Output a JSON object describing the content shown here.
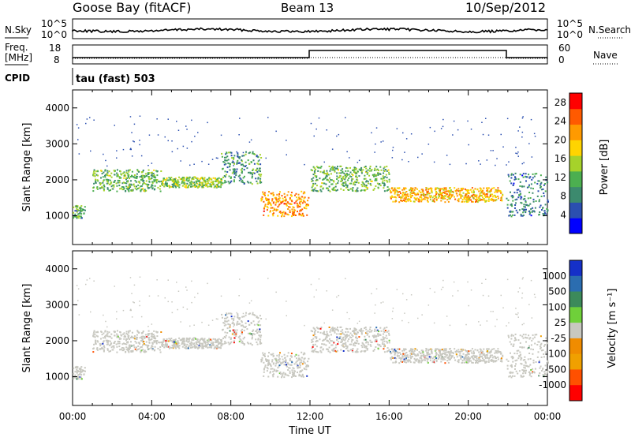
{
  "header": {
    "station": "Goose Bay (fitACF)",
    "beam": "Beam 13",
    "date": "10/Sep/2012"
  },
  "noise_panel": {
    "left_label": "N.Sky",
    "right_label": "N.Search",
    "axis_ticks": [
      "10^5",
      "10^0"
    ]
  },
  "freq_panel": {
    "label_line1": "Freq.",
    "label_line2": "[MHz]",
    "left_ticks": [
      "18",
      "8"
    ],
    "right_label": "Nave",
    "right_ticks": [
      "60",
      "0"
    ]
  },
  "cpid": {
    "label": "CPID",
    "mode": "tau (fast) 503"
  },
  "colors": {
    "power_scale": [
      "#0000ff",
      "#2b4fb0",
      "#3c8a6e",
      "#4caf50",
      "#a6d22a",
      "#ffd400",
      "#ff9a00",
      "#ff5a00",
      "#ff0000"
    ],
    "velocity_scale": [
      "#1530c8",
      "#2b6db0",
      "#3c8a5a",
      "#6fd03a",
      "#c8c8c0",
      "#f08c00",
      "#f0a000",
      "#ff5000",
      "#ff0000"
    ],
    "ground_scatter": "#c8c8c0"
  },
  "chart_data": [
    {
      "type": "heatmap",
      "name": "power",
      "ylabel": "Slant Range [km]",
      "yticks": [
        "1000",
        "2000",
        "3000",
        "4000"
      ],
      "ylim": [
        200,
        4500
      ],
      "xlim_hours": [
        0,
        24
      ],
      "colorbar": {
        "label": "Power [dB]",
        "ticks": [
          "4",
          "8",
          "12",
          "16",
          "20",
          "24",
          "28"
        ],
        "range": [
          0,
          30
        ]
      },
      "scatter_regions": [
        {
          "start_hr": 0.0,
          "end_hr": 0.6,
          "low_km": 950,
          "high_km": 1300,
          "level_db": 10
        },
        {
          "start_hr": 1.0,
          "end_hr": 4.5,
          "low_km": 1700,
          "high_km": 2300,
          "level_db": 12
        },
        {
          "start_hr": 4.5,
          "end_hr": 7.5,
          "low_km": 1800,
          "high_km": 2100,
          "level_db": 14
        },
        {
          "start_hr": 7.5,
          "end_hr": 9.5,
          "low_km": 1900,
          "high_km": 2800,
          "level_db": 10
        },
        {
          "start_hr": 9.5,
          "end_hr": 11.9,
          "low_km": 1000,
          "high_km": 1700,
          "level_db": 22
        },
        {
          "start_hr": 12.0,
          "end_hr": 16.0,
          "low_km": 1700,
          "high_km": 2400,
          "level_db": 12
        },
        {
          "start_hr": 16.0,
          "end_hr": 21.7,
          "low_km": 1400,
          "high_km": 1800,
          "level_db": 20
        },
        {
          "start_hr": 21.9,
          "end_hr": 24.0,
          "low_km": 1000,
          "high_km": 2200,
          "level_db": 8
        }
      ]
    },
    {
      "type": "heatmap",
      "name": "velocity",
      "ylabel": "Slant Range [km]",
      "xlabel": "Time UT",
      "xticks": [
        "00:00",
        "04:00",
        "08:00",
        "12:00",
        "16:00",
        "20:00",
        "00:00"
      ],
      "yticks": [
        "1000",
        "2000",
        "3000",
        "4000"
      ],
      "ylim": [
        200,
        4500
      ],
      "xlim_hours": [
        0,
        24
      ],
      "colorbar": {
        "label": "Velocity [m s⁻¹]",
        "ticks": [
          "1000",
          "500",
          "100",
          "25",
          "-25",
          "-100",
          "-500",
          "-1000"
        ]
      }
    }
  ]
}
